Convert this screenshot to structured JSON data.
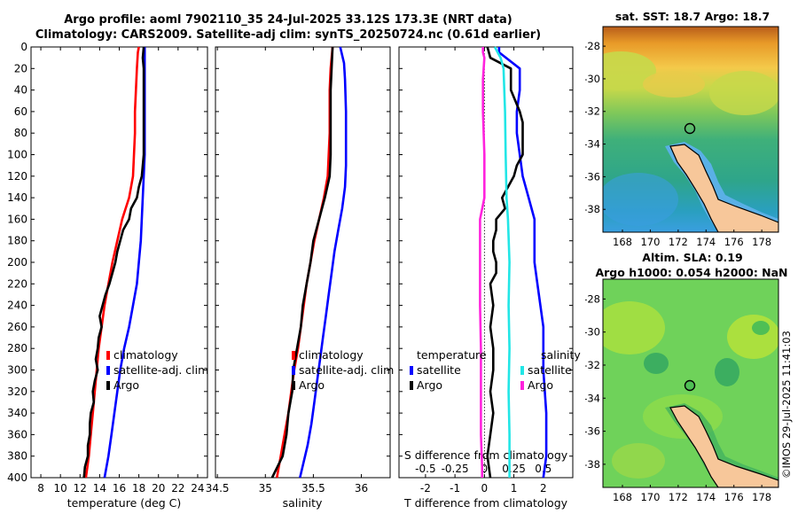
{
  "title_line1": "Argo profile: aoml 7902110_35 24-Jul-2025 33.12S 173.3E (NRT data)",
  "title_line2": "Climatology: CARS2009. Satellite-adj clim: synTS_20250724.nc (0.61d earlier)",
  "credit": "©IMOS 29-Jul-2025 11:41:03",
  "colors": {
    "climatology": "#ff0000",
    "satellite": "#0000ff",
    "argo": "#000000",
    "cyan": "#22e6e6",
    "magenta": "#ff22dd"
  },
  "chart_data": [
    {
      "type": "line",
      "name": "temperature",
      "xlabel": "temperature (deg C)",
      "xlim": [
        7,
        25
      ],
      "xticks": [
        8,
        10,
        12,
        14,
        16,
        18,
        20,
        22,
        24
      ],
      "xtick_labels": [
        "8",
        "10",
        "12",
        "14",
        "16",
        "18",
        "20",
        "22",
        "24"
      ],
      "ylim": [
        400,
        0
      ],
      "yticks": [
        0,
        20,
        40,
        60,
        80,
        100,
        120,
        140,
        160,
        180,
        200,
        220,
        240,
        260,
        280,
        300,
        320,
        340,
        360,
        380,
        400
      ],
      "ytick_labels": [
        "0",
        "20",
        "40",
        "60",
        "80",
        "100",
        "120",
        "140",
        "160",
        "180",
        "200",
        "220",
        "240",
        "260",
        "280",
        "300",
        "320",
        "340",
        "360",
        "380",
        "400"
      ],
      "legend": [
        "climatology",
        "satellite-adj. clim",
        "Argo"
      ],
      "series": [
        {
          "name": "climatology",
          "color": "red",
          "points": [
            [
              18.0,
              0
            ],
            [
              17.9,
              5
            ],
            [
              17.8,
              20
            ],
            [
              17.7,
              40
            ],
            [
              17.6,
              60
            ],
            [
              17.6,
              80
            ],
            [
              17.5,
              100
            ],
            [
              17.4,
              120
            ],
            [
              17.0,
              140
            ],
            [
              16.3,
              160
            ],
            [
              15.8,
              180
            ],
            [
              15.3,
              200
            ],
            [
              14.9,
              220
            ],
            [
              14.5,
              240
            ],
            [
              14.2,
              260
            ],
            [
              13.9,
              280
            ],
            [
              13.7,
              300
            ],
            [
              13.5,
              320
            ],
            [
              13.3,
              340
            ],
            [
              13.1,
              360
            ],
            [
              12.9,
              380
            ],
            [
              12.6,
              400
            ]
          ]
        },
        {
          "name": "satellite-adj. clim",
          "color": "blue",
          "points": [
            [
              18.6,
              0
            ],
            [
              18.6,
              20
            ],
            [
              18.6,
              40
            ],
            [
              18.6,
              60
            ],
            [
              18.6,
              80
            ],
            [
              18.6,
              100
            ],
            [
              18.5,
              120
            ],
            [
              18.4,
              140
            ],
            [
              18.3,
              160
            ],
            [
              18.2,
              180
            ],
            [
              18.0,
              200
            ],
            [
              17.8,
              220
            ],
            [
              17.4,
              240
            ],
            [
              17.0,
              260
            ],
            [
              16.5,
              280
            ],
            [
              16.1,
              300
            ],
            [
              15.8,
              320
            ],
            [
              15.5,
              340
            ],
            [
              15.2,
              360
            ],
            [
              14.9,
              380
            ],
            [
              14.5,
              400
            ]
          ]
        },
        {
          "name": "Argo",
          "color": "black",
          "points": [
            [
              18.5,
              0
            ],
            [
              18.4,
              10
            ],
            [
              18.5,
              20
            ],
            [
              18.5,
              40
            ],
            [
              18.5,
              60
            ],
            [
              18.5,
              80
            ],
            [
              18.5,
              100
            ],
            [
              18.4,
              110
            ],
            [
              18.3,
              120
            ],
            [
              18.0,
              130
            ],
            [
              17.8,
              140
            ],
            [
              17.2,
              150
            ],
            [
              17.0,
              160
            ],
            [
              16.4,
              170
            ],
            [
              16.1,
              180
            ],
            [
              15.8,
              190
            ],
            [
              15.6,
              200
            ],
            [
              15.3,
              210
            ],
            [
              15.0,
              220
            ],
            [
              14.6,
              230
            ],
            [
              14.3,
              240
            ],
            [
              14.0,
              250
            ],
            [
              14.2,
              260
            ],
            [
              13.9,
              270
            ],
            [
              13.8,
              280
            ],
            [
              13.6,
              290
            ],
            [
              13.8,
              300
            ],
            [
              13.5,
              310
            ],
            [
              13.3,
              320
            ],
            [
              13.4,
              330
            ],
            [
              13.1,
              340
            ],
            [
              13.0,
              350
            ],
            [
              13.0,
              360
            ],
            [
              12.8,
              370
            ],
            [
              12.8,
              380
            ],
            [
              12.5,
              390
            ],
            [
              12.4,
              400
            ]
          ]
        }
      ]
    },
    {
      "type": "line",
      "name": "salinity",
      "xlabel": "salinity",
      "xlim": [
        34.48,
        36.3
      ],
      "xticks": [
        34.5,
        35,
        35.5,
        36
      ],
      "xtick_labels": [
        "34.5",
        "35",
        "35.5",
        "36"
      ],
      "ylim": [
        400,
        0
      ],
      "legend": [
        "climatology",
        "satellite-adj. clim",
        "Argo"
      ],
      "series": [
        {
          "name": "climatology",
          "color": "red",
          "points": [
            [
              35.7,
              0
            ],
            [
              35.68,
              20
            ],
            [
              35.67,
              40
            ],
            [
              35.67,
              60
            ],
            [
              35.67,
              80
            ],
            [
              35.66,
              100
            ],
            [
              35.65,
              120
            ],
            [
              35.61,
              140
            ],
            [
              35.56,
              160
            ],
            [
              35.51,
              180
            ],
            [
              35.47,
              200
            ],
            [
              35.43,
              220
            ],
            [
              35.4,
              240
            ],
            [
              35.37,
              260
            ],
            [
              35.34,
              280
            ],
            [
              35.3,
              300
            ],
            [
              35.27,
              320
            ],
            [
              35.24,
              340
            ],
            [
              35.2,
              360
            ],
            [
              35.16,
              380
            ],
            [
              35.12,
              400
            ]
          ]
        },
        {
          "name": "satellite-adj. clim",
          "color": "blue",
          "points": [
            [
              35.78,
              0
            ],
            [
              35.82,
              15
            ],
            [
              35.83,
              30
            ],
            [
              35.84,
              60
            ],
            [
              35.84,
              90
            ],
            [
              35.84,
              110
            ],
            [
              35.83,
              130
            ],
            [
              35.8,
              150
            ],
            [
              35.76,
              170
            ],
            [
              35.72,
              190
            ],
            [
              35.69,
              210
            ],
            [
              35.66,
              230
            ],
            [
              35.63,
              250
            ],
            [
              35.6,
              270
            ],
            [
              35.57,
              290
            ],
            [
              35.54,
              310
            ],
            [
              35.51,
              330
            ],
            [
              35.48,
              350
            ],
            [
              35.44,
              370
            ],
            [
              35.4,
              385
            ],
            [
              35.36,
              400
            ]
          ]
        },
        {
          "name": "Argo",
          "color": "black",
          "points": [
            [
              35.7,
              0
            ],
            [
              35.69,
              20
            ],
            [
              35.68,
              40
            ],
            [
              35.68,
              60
            ],
            [
              35.68,
              80
            ],
            [
              35.68,
              100
            ],
            [
              35.67,
              120
            ],
            [
              35.62,
              140
            ],
            [
              35.56,
              160
            ],
            [
              35.5,
              180
            ],
            [
              35.47,
              200
            ],
            [
              35.43,
              220
            ],
            [
              35.39,
              240
            ],
            [
              35.37,
              260
            ],
            [
              35.33,
              280
            ],
            [
              35.29,
              300
            ],
            [
              35.28,
              320
            ],
            [
              35.24,
              340
            ],
            [
              35.22,
              360
            ],
            [
              35.18,
              380
            ],
            [
              35.07,
              400
            ]
          ]
        }
      ]
    },
    {
      "type": "line",
      "name": "difference",
      "xlabel": "T difference from climatology",
      "xlabel_top": "S difference from climatology",
      "xlim": [
        -2.9,
        3.0
      ],
      "xticks": [
        -2,
        -1,
        0,
        1,
        2
      ],
      "xtick_labels": [
        "-2",
        "-1",
        "0",
        "1",
        "2"
      ],
      "s_ticks": [
        -0.5,
        -0.25,
        0,
        0.25,
        0.5
      ],
      "s_tick_labels": [
        "-0.5",
        "-0.25",
        "0",
        "0.25",
        "0.5"
      ],
      "ylim": [
        400,
        0
      ],
      "legend_left_title": "temperature",
      "legend_right_title": "salinity",
      "legend_left": [
        "satellite",
        "Argo"
      ],
      "legend_right": [
        "satellite",
        "Argo"
      ],
      "series": [
        {
          "name": "T satellite",
          "color": "blue",
          "points": [
            [
              0.5,
              0
            ],
            [
              0.5,
              5
            ],
            [
              1.2,
              20
            ],
            [
              1.2,
              40
            ],
            [
              1.1,
              60
            ],
            [
              1.1,
              80
            ],
            [
              1.2,
              100
            ],
            [
              1.3,
              120
            ],
            [
              1.5,
              140
            ],
            [
              1.7,
              160
            ],
            [
              1.7,
              180
            ],
            [
              1.7,
              200
            ],
            [
              1.8,
              220
            ],
            [
              2.0,
              260
            ],
            [
              2.0,
              300
            ],
            [
              2.1,
              340
            ],
            [
              2.1,
              380
            ],
            [
              2.0,
              400
            ]
          ]
        },
        {
          "name": "T Argo",
          "color": "black",
          "points": [
            [
              0.1,
              0
            ],
            [
              0.2,
              10
            ],
            [
              0.9,
              20
            ],
            [
              0.9,
              40
            ],
            [
              1.2,
              60
            ],
            [
              1.3,
              70
            ],
            [
              1.3,
              80
            ],
            [
              1.3,
              100
            ],
            [
              1.1,
              110
            ],
            [
              1.0,
              120
            ],
            [
              0.6,
              140
            ],
            [
              0.7,
              150
            ],
            [
              0.4,
              160
            ],
            [
              0.4,
              170
            ],
            [
              0.3,
              180
            ],
            [
              0.3,
              190
            ],
            [
              0.4,
              200
            ],
            [
              0.4,
              210
            ],
            [
              0.2,
              220
            ],
            [
              0.3,
              240
            ],
            [
              0.2,
              260
            ],
            [
              0.3,
              280
            ],
            [
              0.3,
              300
            ],
            [
              0.2,
              320
            ],
            [
              0.3,
              340
            ],
            [
              0.2,
              360
            ],
            [
              0.1,
              380
            ],
            [
              0.2,
              400
            ]
          ]
        },
        {
          "name": "S satellite",
          "color": "cyan",
          "points": [
            [
              0.35,
              0
            ],
            [
              0.55,
              10
            ],
            [
              0.65,
              20
            ],
            [
              0.7,
              60
            ],
            [
              0.72,
              100
            ],
            [
              0.75,
              140
            ],
            [
              0.8,
              160
            ],
            [
              0.85,
              200
            ],
            [
              0.82,
              240
            ],
            [
              0.85,
              280
            ],
            [
              0.82,
              320
            ],
            [
              0.85,
              360
            ],
            [
              0.85,
              400
            ]
          ]
        },
        {
          "name": "S Argo",
          "color": "magenta",
          "points": [
            [
              -0.05,
              0
            ],
            [
              -0.05,
              5
            ],
            [
              0.0,
              10
            ],
            [
              -0.05,
              30
            ],
            [
              -0.05,
              60
            ],
            [
              0.0,
              100
            ],
            [
              0.0,
              120
            ],
            [
              0.0,
              140
            ],
            [
              -0.15,
              160
            ],
            [
              -0.15,
              200
            ],
            [
              -0.15,
              240
            ],
            [
              -0.12,
              280
            ],
            [
              -0.12,
              320
            ],
            [
              -0.12,
              360
            ],
            [
              -0.08,
              390
            ],
            [
              -0.08,
              400
            ]
          ]
        }
      ]
    }
  ],
  "maps": {
    "sst": {
      "title": "sat. SST: 18.7 Argo: 18.7",
      "lon_ticks": [
        "168",
        "170",
        "172",
        "174",
        "176",
        "178"
      ],
      "lat_ticks": [
        "-28",
        "-30",
        "-32",
        "-34",
        "-36",
        "-38"
      ]
    },
    "sla": {
      "title1": "Altim. SLA: 0.19",
      "title2": "Argo h1000: 0.054 h2000: NaN",
      "lon_ticks": [
        "168",
        "170",
        "172",
        "174",
        "176",
        "178"
      ],
      "lat_ticks": [
        "-28",
        "-30",
        "-32",
        "-34",
        "-36",
        "-38"
      ]
    }
  }
}
